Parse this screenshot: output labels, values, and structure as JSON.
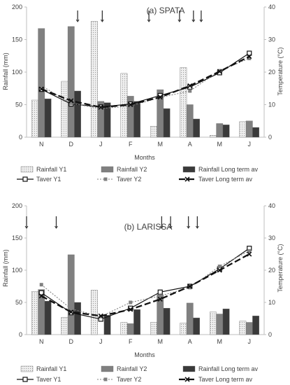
{
  "chart_data": [
    {
      "type": "bar",
      "title": "(a) SPATA",
      "xlabel": "Months",
      "ylabel": "Rainfall (mm)",
      "y2label": "Temperature (°C)",
      "categories": [
        "N",
        "D",
        "J",
        "F",
        "M",
        "A",
        "M",
        "J"
      ],
      "ylim": [
        0,
        200
      ],
      "yticks": [
        0,
        50,
        100,
        150,
        200
      ],
      "y2lim": [
        0,
        40
      ],
      "y2ticks": [
        0,
        10,
        20,
        30,
        40
      ],
      "bar_series": [
        {
          "name": "Rainfall Y1",
          "values": [
            57,
            86,
            178,
            98,
            17,
            107,
            3,
            24
          ]
        },
        {
          "name": "Rainfall Y2",
          "values": [
            167,
            170,
            55,
            63,
            73,
            50,
            21,
            25
          ]
        },
        {
          "name": "Rainfall Long term av",
          "values": [
            59,
            71,
            53,
            55,
            44,
            28,
            19,
            15
          ]
        }
      ],
      "line_series": [
        {
          "name": "Taver Y1",
          "values": [
            14.7,
            10.2,
            9.3,
            10.2,
            12.8,
            15.4,
            19.8,
            25.8
          ]
        },
        {
          "name": "Taver Y2",
          "values": [
            15.8,
            10.4,
            8.8,
            9.6,
            12.2,
            14.2,
            20.4,
            24.2
          ]
        },
        {
          "name": "Taver Long term av",
          "values": [
            14.8,
            11.2,
            9.2,
            10.0,
            12.3,
            15.8,
            20.2,
            24.8
          ]
        }
      ],
      "markers": [
        {
          "category": "D",
          "position": 0.72
        },
        {
          "category": "J",
          "position": 0.55
        },
        {
          "category": "A",
          "position": 0.15
        },
        {
          "category": "A",
          "position": 0.62
        },
        {
          "category": "A",
          "position": 0.88
        },
        {
          "category": "M",
          "position": 0.12
        }
      ],
      "legend": [
        "Rainfall Y1",
        "Rainfall Y2",
        "Rainfall Long term av",
        "Taver Y1",
        "Taver Y2",
        "Taver Long term av"
      ]
    },
    {
      "type": "bar",
      "title": "(b) LARISSA",
      "xlabel": "Months",
      "ylabel": "Rainfall (mm)",
      "y2label": "Temperature (°C)",
      "categories": [
        "N",
        "D",
        "J",
        "F",
        "M",
        "A",
        "M",
        "J"
      ],
      "ylim": [
        0,
        200
      ],
      "yticks": [
        0,
        50,
        100,
        150,
        200
      ],
      "y2lim": [
        0,
        40
      ],
      "y2ticks": [
        0,
        10,
        20,
        30,
        40
      ],
      "bar_series": [
        {
          "name": "Rainfall Y1",
          "values": [
            67,
            27,
            69,
            19,
            19,
            18,
            35,
            21
          ]
        },
        {
          "name": "Rainfall Y2",
          "values": [
            70,
            124,
            0,
            17,
            62,
            49,
            32,
            19
          ]
        },
        {
          "name": "Rainfall Long term av",
          "values": [
            52,
            50,
            30,
            39,
            41,
            26,
            40,
            29
          ]
        }
      ],
      "line_series": [
        {
          "name": "Taver Y1",
          "values": [
            13.0,
            6.8,
            4.8,
            8.2,
            13.2,
            15.0,
            20.4,
            26.8
          ]
        },
        {
          "name": "Taver Y2",
          "values": [
            15.5,
            8.0,
            5.6,
            10.0,
            12.0,
            14.6,
            21.2,
            26.0
          ]
        },
        {
          "name": "Taver Long term av",
          "values": [
            12.0,
            7.0,
            5.8,
            7.8,
            11.0,
            15.0,
            20.0,
            25.0
          ]
        }
      ],
      "markers": [
        {
          "category": "N",
          "position": 0.0
        },
        {
          "category": "D",
          "position": 0.0
        },
        {
          "category": "A",
          "position": 0.45
        },
        {
          "category": "A",
          "position": 0.75
        },
        {
          "category": "M",
          "position": 0.55
        },
        {
          "category": "M",
          "position": 0.85
        }
      ],
      "legend": [
        "Rainfall Y1",
        "Rainfall Y2",
        "Rainfall Long term av",
        "Taver Y1",
        "Taver Y2",
        "Taver Long term av"
      ]
    }
  ],
  "colors": {
    "rain_y1_fill": "#e8e8e8",
    "rain_y2_fill": "#808080",
    "rain_lt_fill": "#3a3a3a",
    "taver_y1": "#111111",
    "taver_y2": "#808080",
    "taver_lt": "#111111"
  }
}
